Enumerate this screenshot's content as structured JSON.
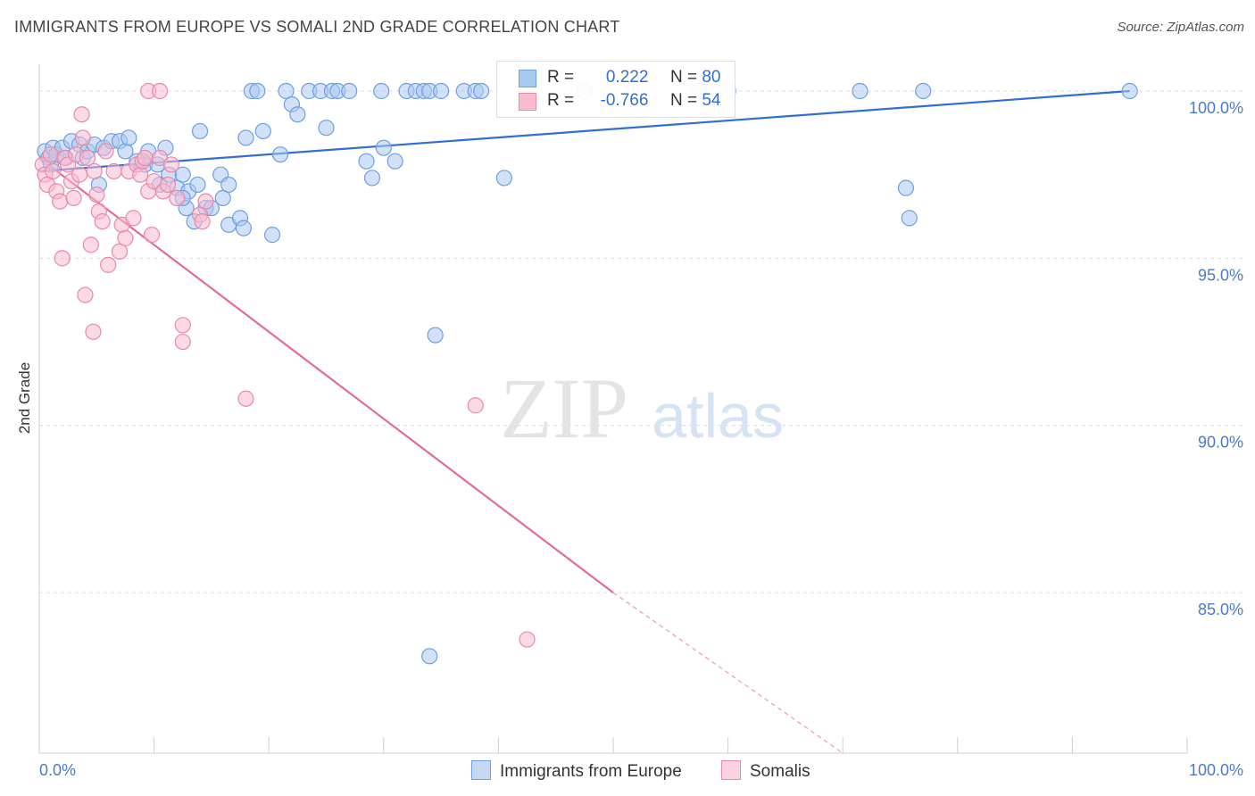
{
  "header": {
    "title": "IMMIGRANTS FROM EUROPE VS SOMALI 2ND GRADE CORRELATION CHART",
    "source": "Source: ZipAtlas.com"
  },
  "watermark": {
    "zip": "ZIP",
    "atlas": "atlas"
  },
  "legend": {
    "rows": [
      {
        "r_label": "R =",
        "r_value": "0.222",
        "n_label": "N =",
        "n_value": "80",
        "color": "#a9c8f2",
        "border": "#6f9fe0"
      },
      {
        "r_label": "R =",
        "r_value": "-0.766",
        "n_label": "N =",
        "n_value": "54",
        "color": "#f7bcd0",
        "border": "#e88aaa"
      }
    ]
  },
  "bottom_legend": [
    {
      "label": "Immigrants from Europe",
      "color": "#a9c8f2",
      "border": "#6f9fe0"
    },
    {
      "label": "Somalis",
      "color": "#f7bcd0",
      "border": "#e88aaa"
    }
  ],
  "chart_data": {
    "type": "scatter",
    "title": "IMMIGRANTS FROM EUROPE VS SOMALI 2ND GRADE CORRELATION CHART",
    "xlabel": "",
    "ylabel": "2nd Grade",
    "xlim": [
      0,
      100
    ],
    "ylim": [
      80.2,
      100.8
    ],
    "x_tick_labels": [
      "0.0%",
      "100.0%"
    ],
    "y_ticks": [
      85,
      90,
      95,
      100
    ],
    "y_tick_labels": [
      "85.0%",
      "90.0%",
      "95.0%",
      "100.0%"
    ],
    "grid": true,
    "legend_position": "top-center",
    "series": [
      {
        "name": "Immigrants from Europe",
        "color": "#6f9fe0",
        "fill": "#a9c8f2",
        "trend": {
          "x": [
            0,
            95
          ],
          "y": [
            97.6,
            100.0
          ],
          "style": "solid"
        },
        "points": [
          [
            0.5,
            98.2
          ],
          [
            0.8,
            98.0
          ],
          [
            1.0,
            97.8
          ],
          [
            1.2,
            98.3
          ],
          [
            1.5,
            98.1
          ],
          [
            2.0,
            98.3
          ],
          [
            2.3,
            98.0
          ],
          [
            2.8,
            98.5
          ],
          [
            3.5,
            98.4
          ],
          [
            3.8,
            98.0
          ],
          [
            4.2,
            98.2
          ],
          [
            4.8,
            98.4
          ],
          [
            5.2,
            97.2
          ],
          [
            5.6,
            98.3
          ],
          [
            6.3,
            98.5
          ],
          [
            7.0,
            98.5
          ],
          [
            7.5,
            98.2
          ],
          [
            7.8,
            98.6
          ],
          [
            8.5,
            97.9
          ],
          [
            9.2,
            97.8
          ],
          [
            9.5,
            98.2
          ],
          [
            10.3,
            97.8
          ],
          [
            10.5,
            97.2
          ],
          [
            11.0,
            98.3
          ],
          [
            11.3,
            97.5
          ],
          [
            12.0,
            97.1
          ],
          [
            12.5,
            97.5
          ],
          [
            12.8,
            96.5
          ],
          [
            13.0,
            97.0
          ],
          [
            12.5,
            96.8
          ],
          [
            13.5,
            96.1
          ],
          [
            13.8,
            97.2
          ],
          [
            14.0,
            98.8
          ],
          [
            14.5,
            96.5
          ],
          [
            15.0,
            96.5
          ],
          [
            15.8,
            97.5
          ],
          [
            16.0,
            96.8
          ],
          [
            16.5,
            97.2
          ],
          [
            16.5,
            96.0
          ],
          [
            17.5,
            96.2
          ],
          [
            17.8,
            95.9
          ],
          [
            18.0,
            98.6
          ],
          [
            18.5,
            100.0
          ],
          [
            19.0,
            100.0
          ],
          [
            19.5,
            98.8
          ],
          [
            20.3,
            95.7
          ],
          [
            21.0,
            98.1
          ],
          [
            21.5,
            100.0
          ],
          [
            22.0,
            99.6
          ],
          [
            22.5,
            99.3
          ],
          [
            23.5,
            100.0
          ],
          [
            24.5,
            100.0
          ],
          [
            25.0,
            98.9
          ],
          [
            25.5,
            100.0
          ],
          [
            26.0,
            100.0
          ],
          [
            27.0,
            100.0
          ],
          [
            28.5,
            97.9
          ],
          [
            29.0,
            97.4
          ],
          [
            30.0,
            98.3
          ],
          [
            31.0,
            97.9
          ],
          [
            29.8,
            100.0
          ],
          [
            32.0,
            100.0
          ],
          [
            32.8,
            100.0
          ],
          [
            33.5,
            100.0
          ],
          [
            34.0,
            100.0
          ],
          [
            35.0,
            100.0
          ],
          [
            34.5,
            92.7
          ],
          [
            34.0,
            83.1
          ],
          [
            37.0,
            100.0
          ],
          [
            38.0,
            100.0
          ],
          [
            38.5,
            100.0
          ],
          [
            40.5,
            97.4
          ],
          [
            47.5,
            100.0
          ],
          [
            57.5,
            100.0
          ],
          [
            60.0,
            100.0
          ],
          [
            71.5,
            100.0
          ],
          [
            75.5,
            97.1
          ],
          [
            75.8,
            96.2
          ],
          [
            77.0,
            100.0
          ],
          [
            95.0,
            100.0
          ]
        ]
      },
      {
        "name": "Somalis",
        "color": "#e88aaa",
        "fill": "#f7bcd0",
        "trend": {
          "x": [
            0,
            50
          ],
          "y": [
            98.0,
            85.0
          ],
          "style": "solid",
          "dashed_extension": {
            "x": [
              50,
              70
            ],
            "y": [
              85.0,
              80.2
            ]
          }
        },
        "points": [
          [
            0.3,
            97.8
          ],
          [
            0.5,
            97.5
          ],
          [
            0.7,
            97.2
          ],
          [
            1.0,
            98.1
          ],
          [
            1.2,
            97.6
          ],
          [
            1.5,
            97.0
          ],
          [
            1.8,
            96.7
          ],
          [
            2.0,
            95.0
          ],
          [
            2.2,
            98.0
          ],
          [
            2.5,
            97.8
          ],
          [
            2.8,
            97.3
          ],
          [
            3.0,
            96.8
          ],
          [
            3.2,
            98.1
          ],
          [
            3.5,
            97.5
          ],
          [
            3.8,
            98.6
          ],
          [
            3.7,
            99.3
          ],
          [
            4.0,
            93.9
          ],
          [
            4.2,
            98.0
          ],
          [
            4.5,
            95.4
          ],
          [
            4.8,
            97.6
          ],
          [
            4.7,
            92.8
          ],
          [
            5.0,
            96.9
          ],
          [
            5.2,
            96.4
          ],
          [
            5.5,
            96.1
          ],
          [
            5.8,
            98.2
          ],
          [
            6.0,
            94.8
          ],
          [
            6.5,
            97.6
          ],
          [
            7.0,
            95.2
          ],
          [
            7.2,
            96.0
          ],
          [
            7.5,
            95.6
          ],
          [
            7.8,
            97.6
          ],
          [
            8.2,
            96.2
          ],
          [
            8.5,
            97.8
          ],
          [
            8.8,
            97.5
          ],
          [
            9.0,
            97.9
          ],
          [
            9.2,
            98.0
          ],
          [
            9.5,
            97.0
          ],
          [
            9.8,
            95.7
          ],
          [
            10.0,
            97.3
          ],
          [
            10.5,
            98.0
          ],
          [
            10.8,
            97.0
          ],
          [
            11.2,
            97.2
          ],
          [
            11.5,
            97.8
          ],
          [
            12.0,
            96.8
          ],
          [
            12.5,
            93.0
          ],
          [
            12.5,
            92.5
          ],
          [
            14.0,
            96.3
          ],
          [
            14.5,
            96.7
          ],
          [
            9.5,
            100.0
          ],
          [
            10.5,
            100.0
          ],
          [
            14.2,
            96.1
          ],
          [
            18.0,
            90.8
          ],
          [
            38.0,
            90.6
          ],
          [
            42.5,
            83.6
          ]
        ]
      }
    ]
  }
}
